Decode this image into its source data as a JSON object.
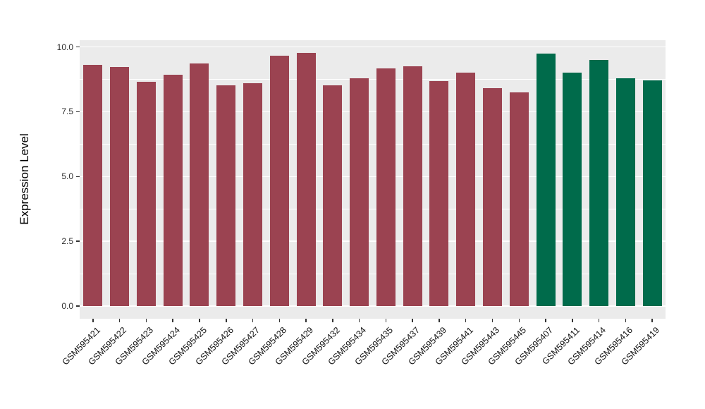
{
  "chart_data": {
    "type": "bar",
    "title": "",
    "xlabel": "",
    "ylabel": "Expression Level",
    "categories": [
      "GSM595421",
      "GSM595422",
      "GSM595423",
      "GSM595424",
      "GSM595425",
      "GSM595426",
      "GSM595427",
      "GSM595428",
      "GSM595429",
      "GSM595432",
      "GSM595434",
      "GSM595435",
      "GSM595437",
      "GSM595439",
      "GSM595441",
      "GSM595443",
      "GSM595445",
      "GSM595407",
      "GSM595411",
      "GSM595414",
      "GSM595416",
      "GSM595419"
    ],
    "values": [
      9.3,
      9.22,
      8.65,
      8.93,
      9.37,
      8.53,
      8.59,
      9.66,
      9.77,
      8.52,
      8.79,
      9.16,
      9.25,
      8.68,
      9.02,
      8.41,
      8.24,
      9.75,
      9.02,
      9.5,
      8.78,
      8.7
    ],
    "groups": [
      0,
      0,
      0,
      0,
      0,
      0,
      0,
      0,
      0,
      0,
      0,
      0,
      0,
      0,
      0,
      0,
      0,
      1,
      1,
      1,
      1,
      1
    ],
    "group_colors": [
      "#9B4351",
      "#006B4B"
    ],
    "yticks": {
      "values": [
        0,
        2.5,
        5,
        7.5,
        10
      ],
      "labels": [
        "0.0",
        "2.5",
        "5.0",
        "7.5",
        "10.0"
      ]
    },
    "minor_yticks": [
      1.25,
      3.75,
      6.25,
      8.75
    ],
    "ylim": [
      -0.49,
      10.26
    ],
    "grid": true,
    "legend_position": "none",
    "panel_bg": "#EBEBEB",
    "grid_color": "#FFFFFF"
  }
}
